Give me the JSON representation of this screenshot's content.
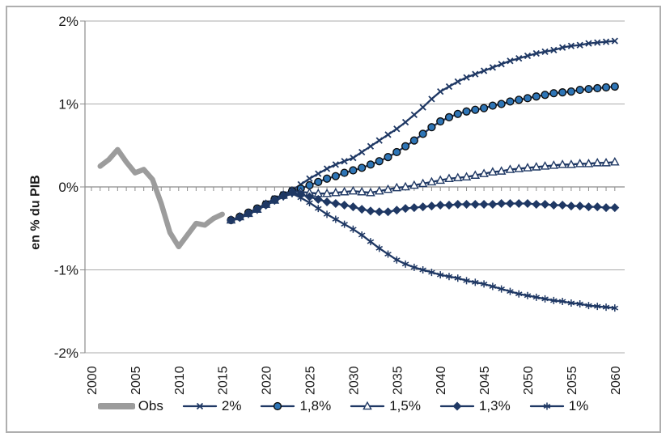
{
  "figure": {
    "background": "#FFFFFF",
    "border_color": "#AFAFAF",
    "axis_color": "#8C8C8C",
    "grid_color": "#ABABAB",
    "text_color": "#1A1A1A",
    "accent_navy": "#1F3864",
    "circle_fill": "#2E75B6",
    "obs_gray": "#9C9C9C"
  },
  "chart_data": {
    "type": "line",
    "title": "",
    "xlabel": "",
    "ylabel": "en % du PIB",
    "ylim": [
      -2,
      2
    ],
    "xlim": [
      2000,
      2060
    ],
    "grid": true,
    "legend_position": "bottom",
    "y_ticks": [
      {
        "label": "2%",
        "value": 2
      },
      {
        "label": "1%",
        "value": 1
      },
      {
        "label": "0%",
        "value": 0
      },
      {
        "label": "-1%",
        "value": -1
      },
      {
        "label": "-2%",
        "value": -2
      }
    ],
    "x_ticks": [
      {
        "label": "2000",
        "value": 2000
      },
      {
        "label": "2005",
        "value": 2005
      },
      {
        "label": "2010",
        "value": 2010
      },
      {
        "label": "2015",
        "value": 2015
      },
      {
        "label": "2020",
        "value": 2020
      },
      {
        "label": "2025",
        "value": 2025
      },
      {
        "label": "2030",
        "value": 2030
      },
      {
        "label": "2035",
        "value": 2035
      },
      {
        "label": "2040",
        "value": 2040
      },
      {
        "label": "2045",
        "value": 2045
      },
      {
        "label": "2050",
        "value": 2050
      },
      {
        "label": "2055",
        "value": 2055
      },
      {
        "label": "2060",
        "value": 2060
      }
    ],
    "minor_tick_years": [
      2000,
      2060,
      1
    ],
    "series": [
      {
        "name": "Obs",
        "key": "obs",
        "color": "#9C9C9C",
        "line_width": 6.5,
        "marker": "none",
        "x_start": 2001,
        "values": [
          0.25,
          0.33,
          0.45,
          0.3,
          0.17,
          0.21,
          0.09,
          -0.2,
          -0.55,
          -0.72,
          -0.58,
          -0.44,
          -0.46,
          -0.38,
          -0.33
        ]
      },
      {
        "name": "2%",
        "key": "s20",
        "color": "#1F3864",
        "line_width": 2.3,
        "marker": "x",
        "x_start": 2016,
        "values": [
          -0.4,
          -0.36,
          -0.31,
          -0.26,
          -0.2,
          -0.14,
          -0.09,
          -0.04,
          0.03,
          0.1,
          0.16,
          0.22,
          0.27,
          0.31,
          0.35,
          0.42,
          0.49,
          0.56,
          0.63,
          0.7,
          0.78,
          0.87,
          0.96,
          1.06,
          1.15,
          1.21,
          1.27,
          1.32,
          1.36,
          1.4,
          1.44,
          1.48,
          1.52,
          1.55,
          1.58,
          1.61,
          1.63,
          1.65,
          1.68,
          1.7,
          1.71,
          1.73,
          1.74,
          1.75,
          1.76
        ]
      },
      {
        "name": "1,8%",
        "key": "s18",
        "color": "#1F3864",
        "line_width": 2.3,
        "marker": "circle",
        "marker_fill": "#2E75B6",
        "marker_stroke": "#0D0D0D",
        "x_start": 2016,
        "values": [
          -0.4,
          -0.36,
          -0.31,
          -0.26,
          -0.21,
          -0.15,
          -0.1,
          -0.05,
          -0.02,
          0.02,
          0.06,
          0.1,
          0.13,
          0.17,
          0.2,
          0.23,
          0.27,
          0.31,
          0.36,
          0.42,
          0.49,
          0.56,
          0.64,
          0.72,
          0.79,
          0.84,
          0.88,
          0.91,
          0.93,
          0.95,
          0.98,
          1.0,
          1.03,
          1.05,
          1.07,
          1.09,
          1.11,
          1.13,
          1.14,
          1.15,
          1.17,
          1.18,
          1.19,
          1.2,
          1.21
        ]
      },
      {
        "name": "1,5%",
        "key": "s15",
        "color": "#1F3864",
        "line_width": 2.3,
        "marker": "triangle",
        "marker_fill": "#FFFFFF",
        "x_start": 2016,
        "values": [
          -0.4,
          -0.36,
          -0.32,
          -0.27,
          -0.21,
          -0.16,
          -0.1,
          -0.05,
          -0.06,
          -0.07,
          -0.08,
          -0.08,
          -0.07,
          -0.06,
          -0.05,
          -0.06,
          -0.07,
          -0.05,
          -0.03,
          -0.01,
          0.0,
          0.02,
          0.04,
          0.06,
          0.08,
          0.1,
          0.11,
          0.12,
          0.14,
          0.16,
          0.18,
          0.19,
          0.21,
          0.22,
          0.23,
          0.24,
          0.25,
          0.26,
          0.27,
          0.27,
          0.28,
          0.28,
          0.29,
          0.29,
          0.3
        ]
      },
      {
        "name": "1,3%",
        "key": "s13",
        "color": "#1F3864",
        "line_width": 2.3,
        "marker": "diamond",
        "x_start": 2016,
        "values": [
          -0.4,
          -0.37,
          -0.32,
          -0.27,
          -0.22,
          -0.16,
          -0.11,
          -0.07,
          -0.09,
          -0.12,
          -0.15,
          -0.18,
          -0.2,
          -0.22,
          -0.24,
          -0.27,
          -0.29,
          -0.3,
          -0.3,
          -0.28,
          -0.26,
          -0.25,
          -0.24,
          -0.23,
          -0.22,
          -0.22,
          -0.21,
          -0.21,
          -0.21,
          -0.21,
          -0.21,
          -0.2,
          -0.2,
          -0.2,
          -0.2,
          -0.21,
          -0.21,
          -0.22,
          -0.22,
          -0.23,
          -0.23,
          -0.24,
          -0.24,
          -0.25,
          -0.25
        ]
      },
      {
        "name": "1%",
        "key": "s10",
        "color": "#1F3864",
        "line_width": 2.3,
        "marker": "asterisk",
        "x_start": 2016,
        "values": [
          -0.4,
          -0.37,
          -0.33,
          -0.28,
          -0.22,
          -0.17,
          -0.12,
          -0.08,
          -0.13,
          -0.19,
          -0.26,
          -0.33,
          -0.39,
          -0.45,
          -0.51,
          -0.58,
          -0.66,
          -0.74,
          -0.81,
          -0.88,
          -0.93,
          -0.97,
          -1.0,
          -1.03,
          -1.06,
          -1.08,
          -1.1,
          -1.13,
          -1.15,
          -1.17,
          -1.2,
          -1.23,
          -1.26,
          -1.29,
          -1.31,
          -1.33,
          -1.35,
          -1.37,
          -1.38,
          -1.4,
          -1.41,
          -1.43,
          -1.44,
          -1.45,
          -1.46
        ]
      }
    ]
  }
}
